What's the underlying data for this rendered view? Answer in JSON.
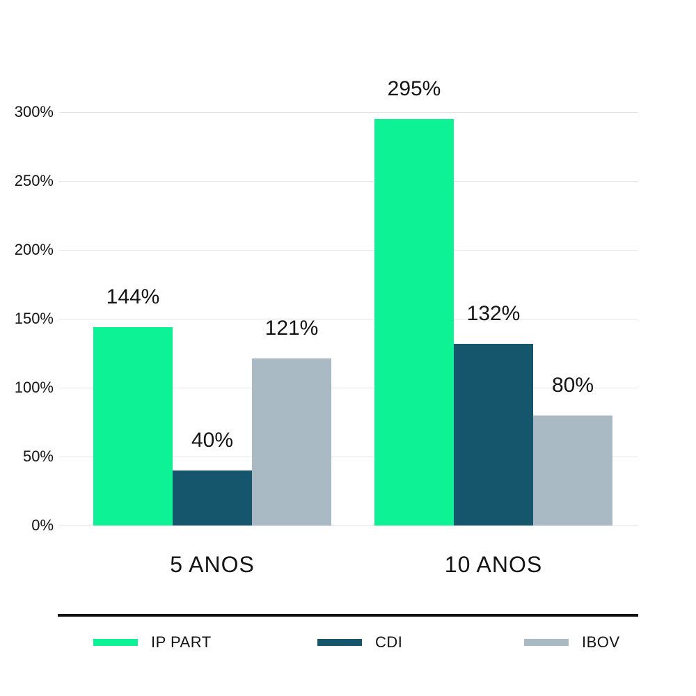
{
  "chart_data": {
    "type": "bar",
    "title": "",
    "categories": [
      "5 ANOS",
      "10 ANOS"
    ],
    "series": [
      {
        "name": "IP PART",
        "color": "#0cf294",
        "values": [
          144,
          295
        ],
        "labels": [
          "144%",
          "295%"
        ]
      },
      {
        "name": "CDI",
        "color": "#15566c",
        "values": [
          40,
          132
        ],
        "labels": [
          "40%",
          "132%"
        ]
      },
      {
        "name": "IBOV",
        "color": "#a9bac5",
        "values": [
          121,
          80
        ],
        "labels": [
          "121%",
          "80%"
        ]
      }
    ],
    "y_axis": {
      "min": 0,
      "max": 300,
      "ticks": [
        {
          "label": "300%",
          "value": 300
        },
        {
          "label": "250%",
          "value": 250
        },
        {
          "label": "200%",
          "value": 200
        },
        {
          "label": "150%",
          "value": 150
        },
        {
          "label": "100%",
          "value": 100
        },
        {
          "label": "50%",
          "value": 50
        },
        {
          "label": "0%",
          "value": 0
        }
      ]
    },
    "grid": true,
    "legend_position": "bottom",
    "xlabel": "",
    "ylabel": "",
    "colors": {
      "background": "#ffffff",
      "text": "#141414",
      "gridline": "#e5e5e5",
      "divider": "#101010"
    }
  }
}
